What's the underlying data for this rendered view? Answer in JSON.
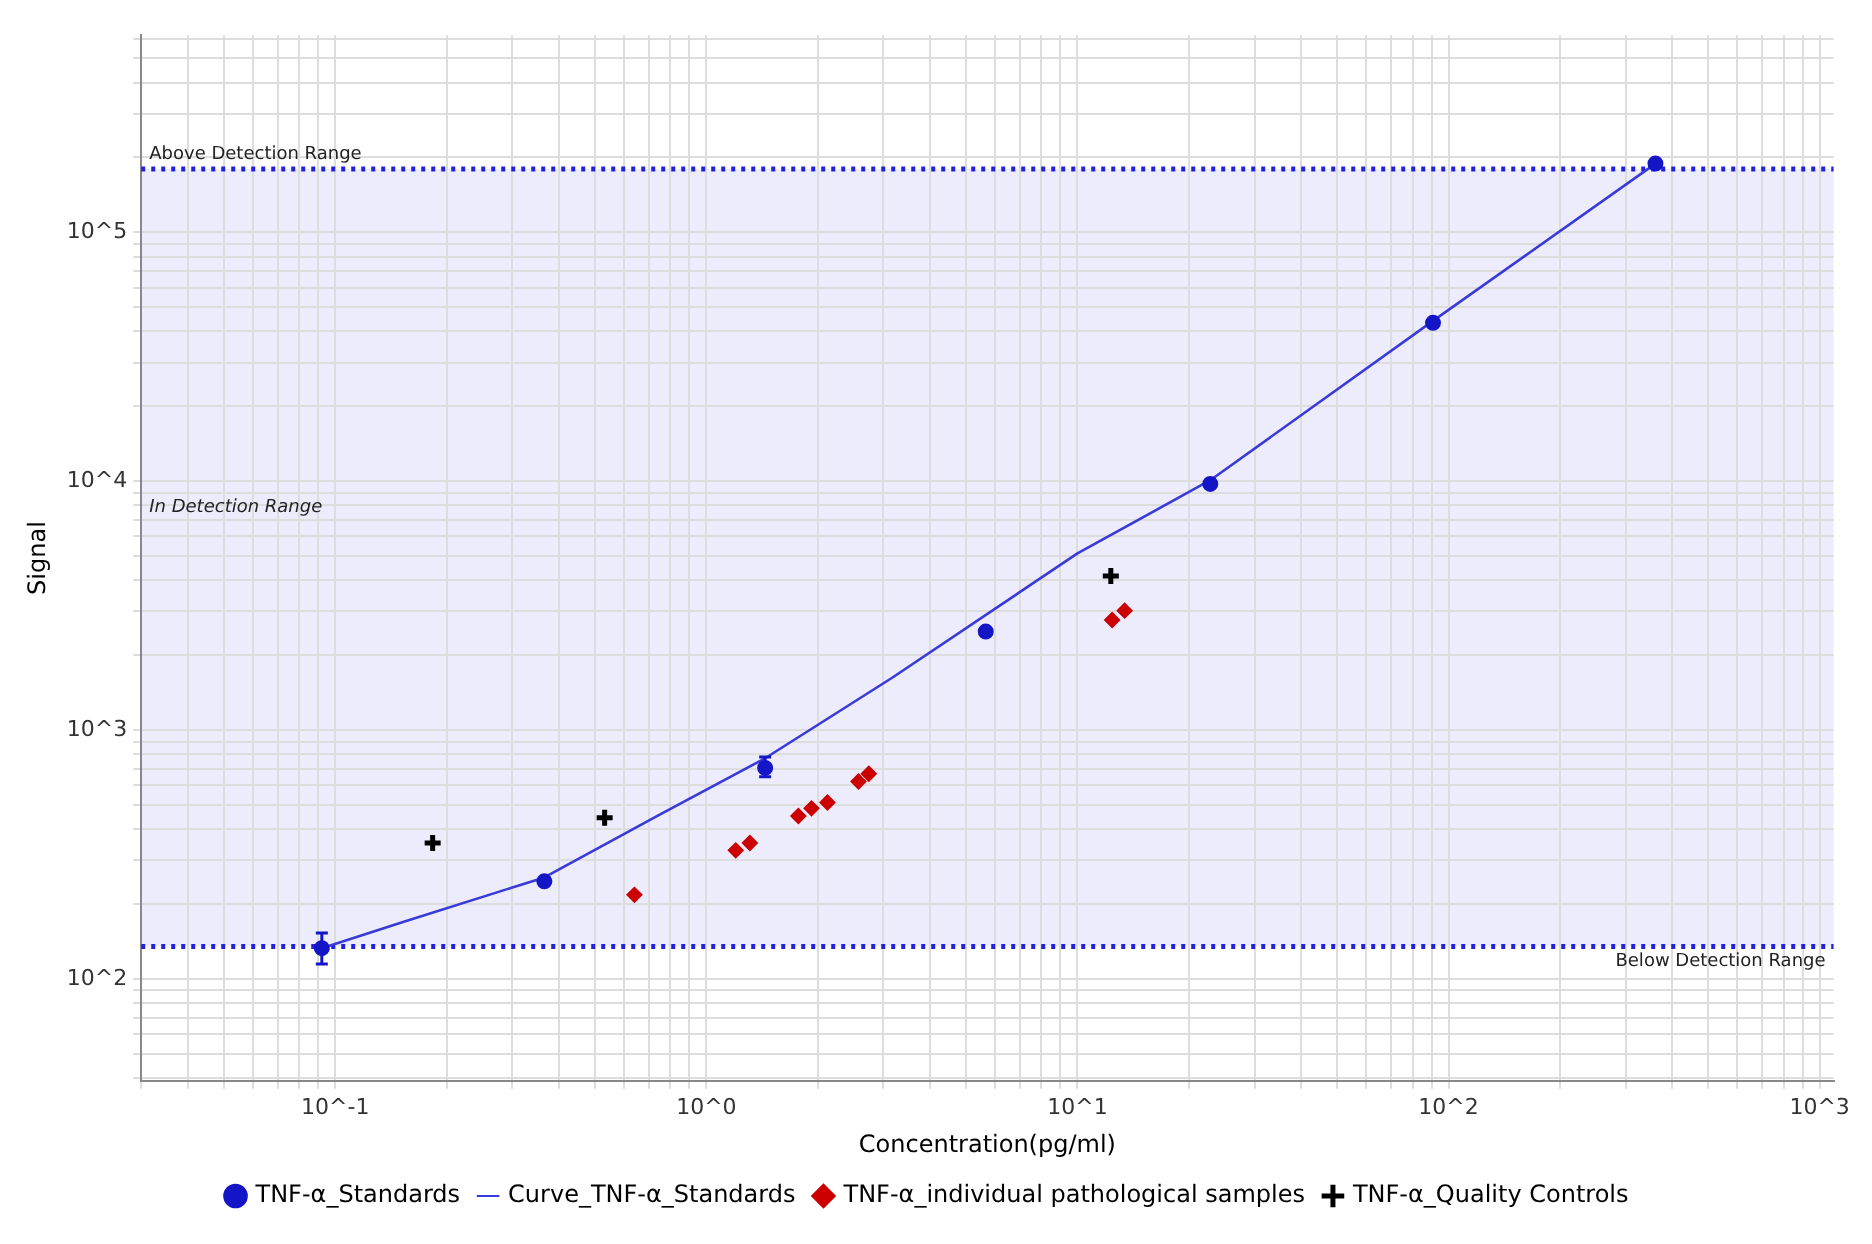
{
  "chart_data": {
    "type": "scatter",
    "xlabel": "Concentration(pg/ml)",
    "ylabel": "Signal",
    "log": "xy",
    "grid": true,
    "legend": "bottom",
    "xlim": [
      0.03,
      1090
    ],
    "ylim": [
      39,
      620000
    ],
    "xticks": [
      {
        "value": 0.03,
        "label": null
      },
      {
        "value": 0.04,
        "label": null
      },
      {
        "value": 0.05,
        "label": null
      },
      {
        "value": 0.06,
        "label": null
      },
      {
        "value": 0.07,
        "label": null
      },
      {
        "value": 0.08,
        "label": null
      },
      {
        "value": 0.09,
        "label": null
      },
      {
        "value": 0.1,
        "label": "10^-1"
      },
      {
        "value": 0.2,
        "label": null
      },
      {
        "value": 0.3,
        "label": null
      },
      {
        "value": 0.4,
        "label": null
      },
      {
        "value": 0.5,
        "label": null
      },
      {
        "value": 0.6,
        "label": null
      },
      {
        "value": 0.7,
        "label": null
      },
      {
        "value": 0.8,
        "label": null
      },
      {
        "value": 0.9,
        "label": null
      },
      {
        "value": 1,
        "label": "10^0"
      },
      {
        "value": 2,
        "label": null
      },
      {
        "value": 3,
        "label": null
      },
      {
        "value": 4,
        "label": null
      },
      {
        "value": 5,
        "label": null
      },
      {
        "value": 6,
        "label": null
      },
      {
        "value": 7,
        "label": null
      },
      {
        "value": 8,
        "label": null
      },
      {
        "value": 9,
        "label": null
      },
      {
        "value": 10,
        "label": "10^1"
      },
      {
        "value": 20,
        "label": null
      },
      {
        "value": 30,
        "label": null
      },
      {
        "value": 40,
        "label": null
      },
      {
        "value": 50,
        "label": null
      },
      {
        "value": 60,
        "label": null
      },
      {
        "value": 70,
        "label": null
      },
      {
        "value": 80,
        "label": null
      },
      {
        "value": 90,
        "label": null
      },
      {
        "value": 100,
        "label": "10^2"
      },
      {
        "value": 200,
        "label": null
      },
      {
        "value": 300,
        "label": null
      },
      {
        "value": 400,
        "label": null
      },
      {
        "value": 500,
        "label": null
      },
      {
        "value": 600,
        "label": null
      },
      {
        "value": 700,
        "label": null
      },
      {
        "value": 800,
        "label": null
      },
      {
        "value": 900,
        "label": null
      },
      {
        "value": 1000,
        "label": "10^3"
      }
    ],
    "yticks": [
      {
        "value": 40,
        "label": null
      },
      {
        "value": 50,
        "label": null
      },
      {
        "value": 60,
        "label": null
      },
      {
        "value": 70,
        "label": null
      },
      {
        "value": 80,
        "label": null
      },
      {
        "value": 90,
        "label": null
      },
      {
        "value": 100,
        "label": "10^2"
      },
      {
        "value": 200,
        "label": null
      },
      {
        "value": 300,
        "label": null
      },
      {
        "value": 400,
        "label": null
      },
      {
        "value": 500,
        "label": null
      },
      {
        "value": 600,
        "label": null
      },
      {
        "value": 700,
        "label": null
      },
      {
        "value": 800,
        "label": null
      },
      {
        "value": 900,
        "label": null
      },
      {
        "value": 1000,
        "label": "10^3"
      },
      {
        "value": 2000,
        "label": null
      },
      {
        "value": 3000,
        "label": null
      },
      {
        "value": 4000,
        "label": null
      },
      {
        "value": 5000,
        "label": null
      },
      {
        "value": 6000,
        "label": null
      },
      {
        "value": 7000,
        "label": null
      },
      {
        "value": 8000,
        "label": null
      },
      {
        "value": 9000,
        "label": null
      },
      {
        "value": 10000,
        "label": "10^4"
      },
      {
        "value": 20000,
        "label": null
      },
      {
        "value": 30000,
        "label": null
      },
      {
        "value": 40000,
        "label": null
      },
      {
        "value": 50000,
        "label": null
      },
      {
        "value": 60000,
        "label": null
      },
      {
        "value": 70000,
        "label": null
      },
      {
        "value": 80000,
        "label": null
      },
      {
        "value": 90000,
        "label": null
      },
      {
        "value": 100000,
        "label": "10^5"
      },
      {
        "value": 200000,
        "label": null
      },
      {
        "value": 300000,
        "label": null
      },
      {
        "value": 400000,
        "label": null
      },
      {
        "value": 500000,
        "label": null
      },
      {
        "value": 600000,
        "label": null
      }
    ],
    "bands": [
      {
        "axis": "y",
        "from": 135,
        "to": 180000,
        "label": "In Detection Range",
        "color": "#ececfc"
      }
    ],
    "ref_lines": [
      {
        "axis": "y",
        "value": 180000,
        "label": "Above Detection Range",
        "color": "#2222dd",
        "line_style": "dotted"
      },
      {
        "axis": "y",
        "value": 135,
        "label": "Below Detection Range",
        "color": "#2222dd",
        "line_style": "dotted"
      }
    ],
    "series": [
      {
        "name": "TNF-α_Standards",
        "type": "scatter",
        "marker": "circle",
        "color": "#1515c8",
        "x": [
          0.092,
          0.366,
          1.44,
          5.66,
          22.8,
          90.8,
          361
        ],
        "values": [
          133,
          247,
          705,
          2490,
          9760,
          43300,
          189000
        ],
        "errors": [
          [
            115,
            153
          ],
          null,
          [
            650,
            780
          ],
          null,
          null,
          null,
          null
        ]
      },
      {
        "name": "Curve_TNF-α_Standards",
        "type": "line",
        "marker": "none",
        "line_style": "solid",
        "color": "#3a3ad8",
        "x": [
          0.092,
          0.153,
          0.366,
          0.738,
          1.44,
          3.16,
          10,
          22.8,
          90.8,
          361
        ],
        "values": [
          133,
          170,
          256,
          452,
          771,
          1620,
          5130,
          10100,
          44100,
          189000
        ]
      },
      {
        "name": "TNF-α_individual pathological samples",
        "type": "scatter",
        "marker": "diamond",
        "color": "#cc0000",
        "x": [
          0.64,
          1.2,
          1.31,
          1.77,
          1.92,
          2.12,
          2.57,
          2.74,
          12.4,
          13.4
        ],
        "values": [
          218,
          329,
          352,
          452,
          485,
          512,
          622,
          668,
          2770,
          3020
        ]
      },
      {
        "name": "TNF-α_Quality Controls",
        "type": "scatter",
        "marker": "cross",
        "color": "#000000",
        "x": [
          0.183,
          0.532,
          12.3
        ],
        "values": [
          352,
          445,
          4160
        ]
      }
    ]
  }
}
